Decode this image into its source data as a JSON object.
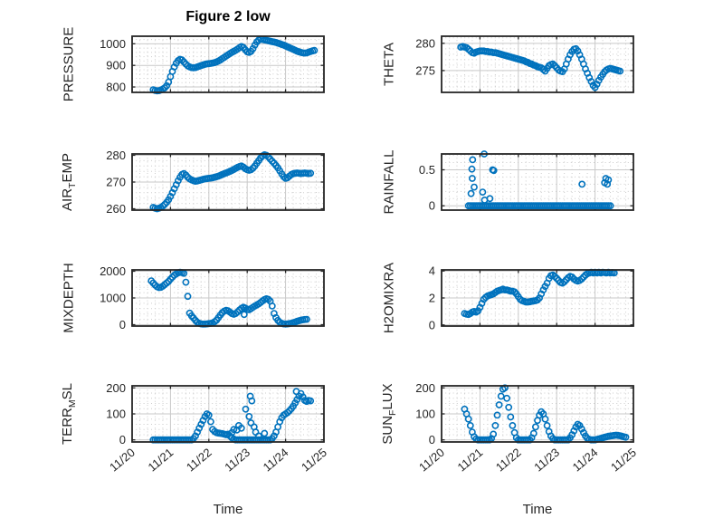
{
  "title": "Figure 2 low",
  "xlabel": "Time",
  "chart_data": {
    "type": "scatter",
    "layout": "4 rows x 2 columns of subplots, shared time axis",
    "x_unit": "days since 11/20",
    "xlim": [
      0,
      5
    ],
    "x_minor_step": 0.2,
    "xticks": {
      "values": [
        0,
        1,
        2,
        3,
        4,
        5
      ],
      "labels": [
        "11/20",
        "11/21",
        "11/22",
        "11/23",
        "11/24",
        "11/25"
      ]
    },
    "colors": {
      "marker": "#0072BD",
      "axes": "#262626",
      "grid": "#c9c9c9",
      "minor_grid": "#cdcdcd",
      "background": "#ffffff",
      "title": "#000000"
    },
    "marker": {
      "shape": "open-circle",
      "radius": 3.1,
      "stroke_width": 1.6
    },
    "subplots": [
      {
        "id": "pressure",
        "label": "PRESSURE",
        "ylabel_parts": [
          {
            "t": "PRESSURE",
            "sub": false
          }
        ],
        "yticks": {
          "values": [
            800,
            900,
            1000
          ],
          "labels": [
            "800",
            "900",
            "1000"
          ]
        },
        "ylim": [
          775,
          1035
        ],
        "y_minor_step": 20,
        "series": {
          "x_start": 0.55,
          "x_step": 0.05,
          "y": [
            787,
            784,
            782,
            783,
            786,
            790,
            796,
            806,
            823,
            848,
            872,
            893,
            910,
            922,
            928,
            925,
            916,
            906,
            898,
            893,
            890,
            889,
            890,
            893,
            896,
            899,
            902,
            905,
            907,
            908,
            909,
            911,
            913,
            916,
            920,
            925,
            931,
            937,
            943,
            949,
            955,
            960,
            965,
            970,
            976,
            982,
            987,
            983,
            972,
            963,
            960,
            965,
            978,
            994,
            1008,
            1017,
            1021,
            1020,
            1018,
            1016,
            1014,
            1012,
            1010,
            1008,
            1006,
            1003,
            1000,
            997,
            994,
            990,
            986,
            982,
            978,
            974,
            970,
            966,
            963,
            960,
            958,
            957,
            958,
            961,
            964,
            967,
            969
          ]
        },
        "points": []
      },
      {
        "id": "theta",
        "label": "THETA",
        "ylabel_parts": [
          {
            "t": "THETA",
            "sub": false
          }
        ],
        "yticks": {
          "values": [
            275,
            280
          ],
          "labels": [
            "275",
            "280"
          ]
        },
        "ylim": [
          271,
          281.3
        ],
        "y_minor_step": 1,
        "series": {
          "x_start": 0.5,
          "x_step": 0.05,
          "y": [
            279.3,
            279.4,
            279.3,
            279.2,
            278.9,
            278.6,
            278.3,
            278.2,
            278.4,
            278.5,
            278.6,
            278.6,
            278.6,
            278.5,
            278.5,
            278.4,
            278.4,
            278.3,
            278.3,
            278.2,
            278.1,
            278.0,
            277.9,
            277.8,
            277.7,
            277.6,
            277.5,
            277.4,
            277.3,
            277.2,
            277.1,
            277.0,
            276.9,
            276.8,
            276.6,
            276.5,
            276.3,
            276.2,
            276.0,
            275.9,
            275.7,
            275.6,
            275.5,
            275.2,
            274.9,
            275.4,
            275.9,
            276.1,
            276.2,
            275.9,
            275.5,
            275.1,
            274.9,
            274.8,
            275.3,
            276.2,
            277.1,
            277.9,
            278.5,
            278.9,
            279.0,
            278.6,
            277.9,
            277.1,
            276.2,
            275.3,
            274.5,
            273.7,
            273.0,
            272.3,
            271.9,
            272.5,
            273.2,
            273.8,
            274.3,
            274.8,
            275.1,
            275.3,
            275.4,
            275.3,
            275.2,
            275.1,
            275.0,
            274.9
          ]
        },
        "points": []
      },
      {
        "id": "air_temp",
        "label": "AIR_TEMP",
        "ylabel_parts": [
          {
            "t": "AIR",
            "sub": false
          },
          {
            "t": "T",
            "sub": true
          },
          {
            "t": "EMP",
            "sub": false
          }
        ],
        "yticks": {
          "values": [
            260,
            270,
            280
          ],
          "labels": [
            "260",
            "270",
            "280"
          ]
        },
        "ylim": [
          259.5,
          280.5
        ],
        "y_minor_step": 2,
        "series": {
          "x_start": 0.55,
          "x_step": 0.05,
          "y": [
            260.5,
            260.2,
            260.0,
            260.2,
            260.5,
            261.0,
            261.6,
            262.4,
            263.4,
            264.6,
            266.0,
            267.5,
            269.0,
            270.5,
            271.8,
            272.8,
            273.2,
            272.6,
            271.8,
            271.2,
            270.8,
            270.5,
            270.3,
            270.4,
            270.6,
            270.8,
            271.0,
            271.2,
            271.3,
            271.4,
            271.5,
            271.6,
            271.8,
            272.0,
            272.2,
            272.5,
            272.8,
            273.1,
            273.4,
            273.7,
            274.0,
            274.3,
            274.7,
            275.1,
            275.5,
            275.8,
            276.0,
            275.6,
            275.0,
            274.6,
            274.4,
            274.6,
            275.2,
            276.0,
            277.0,
            278.0,
            279.0,
            279.8,
            280.2,
            280.0,
            279.4,
            278.6,
            277.8,
            277.0,
            276.2,
            275.3,
            274.2,
            273.0,
            272.0,
            271.4,
            271.6,
            272.2,
            272.8,
            273.1,
            273.3,
            273.4,
            273.3,
            273.2,
            273.3,
            273.4,
            273.3,
            273.2,
            273.3
          ]
        },
        "points": []
      },
      {
        "id": "rainfall",
        "label": "RAINFALL",
        "ylabel_parts": [
          {
            "t": "RAINFALL",
            "sub": false
          }
        ],
        "yticks": {
          "values": [
            0,
            0.5
          ],
          "labels": [
            "0",
            "0.5"
          ]
        },
        "ylim": [
          -0.06,
          0.72
        ],
        "y_minor_step": 0.1,
        "series": {
          "x_start": 0.7,
          "x_step": 0.05,
          "y": [
            0,
            0,
            0,
            0,
            0,
            0,
            0,
            0,
            0,
            0,
            0,
            0,
            0,
            0,
            0,
            0,
            0,
            0,
            0,
            0,
            0,
            0,
            0,
            0,
            0,
            0,
            0,
            0,
            0,
            0,
            0,
            0,
            0,
            0,
            0,
            0,
            0,
            0,
            0,
            0,
            0,
            0,
            0,
            0,
            0,
            0,
            0,
            0,
            0,
            0,
            0,
            0,
            0,
            0,
            0,
            0,
            0,
            0,
            0,
            0,
            0,
            0,
            0,
            0,
            0,
            0,
            0,
            0,
            0,
            0,
            0,
            0,
            0,
            0,
            0
          ]
        },
        "points": [
          [
            0.77,
            0.17
          ],
          [
            0.79,
            0.51
          ],
          [
            0.8,
            0.38
          ],
          [
            0.81,
            0.64
          ],
          [
            0.85,
            0.26
          ],
          [
            1.07,
            0.19
          ],
          [
            1.11,
            0.72
          ],
          [
            1.12,
            0.08
          ],
          [
            1.26,
            0.1
          ],
          [
            1.33,
            0.5
          ],
          [
            1.36,
            0.49
          ],
          [
            3.66,
            0.3
          ],
          [
            4.25,
            0.32
          ],
          [
            4.28,
            0.38
          ],
          [
            4.32,
            0.3
          ],
          [
            4.35,
            0.36
          ]
        ]
      },
      {
        "id": "mixdepth",
        "label": "MIXDEPTH",
        "ylabel_parts": [
          {
            "t": "MIXDEPTH",
            "sub": false
          }
        ],
        "yticks": {
          "values": [
            0,
            1000,
            2000
          ],
          "labels": [
            "0",
            "1000",
            "2000"
          ]
        },
        "ylim": [
          -50,
          2050
        ],
        "y_minor_step": 200,
        "series": {
          "x_start": 0.5,
          "x_step": 0.05,
          "y": [
            1640,
            1560,
            1480,
            1420,
            1390,
            1400,
            1440,
            1500,
            1560,
            1620,
            1700,
            1780,
            1850,
            1900,
            1940,
            1960,
            1950,
            1920,
            1590,
            1060,
            430,
            330,
            250,
            160,
            90,
            50,
            30,
            20,
            25,
            30,
            40,
            50,
            70,
            110,
            170,
            260,
            360,
            450,
            510,
            540,
            520,
            470,
            420,
            390,
            420,
            480,
            550,
            610,
            650,
            620,
            580,
            560,
            600,
            650,
            700,
            740,
            780,
            830,
            890,
            940,
            970,
            950,
            880,
            700,
            420,
            260,
            160,
            90,
            50,
            30,
            25,
            30,
            40,
            55,
            75,
            100,
            125,
            150,
            170,
            185,
            195,
            200
          ]
        },
        "points": [
          [
            2.92,
            380
          ]
        ]
      },
      {
        "id": "h2omixra",
        "label": "H2OMIXRA",
        "ylabel_parts": [
          {
            "t": "H2OMIXRA",
            "sub": false
          }
        ],
        "yticks": {
          "values": [
            0,
            2,
            4
          ],
          "labels": [
            "0",
            "2",
            "4"
          ]
        },
        "ylim": [
          -0.08,
          4.08
        ],
        "y_minor_step": 0.4,
        "series": {
          "x_start": 0.6,
          "x_step": 0.05,
          "y": [
            0.85,
            0.8,
            0.78,
            0.85,
            0.95,
            1.0,
            0.95,
            1.05,
            1.3,
            1.6,
            1.9,
            2.05,
            2.15,
            2.2,
            2.25,
            2.3,
            2.4,
            2.5,
            2.55,
            2.6,
            2.65,
            2.6,
            2.6,
            2.55,
            2.5,
            2.5,
            2.45,
            2.3,
            2.1,
            1.9,
            1.8,
            1.75,
            1.7,
            1.7,
            1.72,
            1.75,
            1.78,
            1.8,
            1.85,
            2.0,
            2.3,
            2.6,
            2.85,
            3.1,
            3.45,
            3.65,
            3.7,
            3.6,
            3.45,
            3.3,
            3.15,
            3.1,
            3.2,
            3.35,
            3.5,
            3.6,
            3.55,
            3.4,
            3.3,
            3.25,
            3.3,
            3.4,
            3.55,
            3.7,
            3.8,
            3.85,
            3.9,
            3.85,
            3.9,
            3.85,
            3.9,
            3.85,
            3.9,
            3.88,
            3.85,
            3.9,
            3.85,
            3.88,
            3.85
          ]
        },
        "points": []
      },
      {
        "id": "terr_msl",
        "label": "TERR_MSL",
        "ylabel_parts": [
          {
            "t": "TERR",
            "sub": false
          },
          {
            "t": "M",
            "sub": true
          },
          {
            "t": "SL",
            "sub": false
          }
        ],
        "yticks": {
          "values": [
            0,
            100,
            200
          ],
          "labels": [
            "0",
            "100",
            "200"
          ]
        },
        "ylim": [
          -8,
          208
        ],
        "y_minor_step": 20,
        "series": {
          "x_start": 0.55,
          "x_step": 0.05,
          "y": [
            0,
            0,
            0,
            0,
            0,
            0,
            0,
            0,
            0,
            0,
            0,
            0,
            0,
            0,
            0,
            0,
            0,
            0,
            0,
            0,
            0,
            5,
            15,
            30,
            45,
            60,
            75,
            90,
            100,
            95,
            70,
            40,
            32,
            28,
            26,
            25,
            24,
            22,
            20,
            22,
            15,
            8,
            3,
            0,
            0,
            0,
            0,
            0,
            0,
            0,
            0,
            0,
            0,
            0,
            0,
            0,
            0,
            0,
            0,
            0,
            0,
            0,
            5,
            15,
            30,
            50,
            70,
            85,
            95,
            100,
            105,
            112,
            120,
            130,
            142,
            155,
            168,
            178,
            165,
            152,
            148,
            152,
            150
          ]
        },
        "points": [
          [
            2.6,
            28
          ],
          [
            2.65,
            40
          ],
          [
            2.73,
            38
          ],
          [
            2.78,
            55
          ],
          [
            2.85,
            45
          ],
          [
            2.96,
            118
          ],
          [
            3.05,
            90
          ],
          [
            3.08,
            168
          ],
          [
            3.1,
            65
          ],
          [
            3.12,
            150
          ],
          [
            3.18,
            50
          ],
          [
            3.22,
            30
          ],
          [
            3.3,
            15
          ],
          [
            3.45,
            25
          ],
          [
            4.28,
            186
          ]
        ]
      },
      {
        "id": "sun_flux",
        "label": "SUN_FLUX",
        "ylabel_parts": [
          {
            "t": "SUN",
            "sub": false
          },
          {
            "t": "F",
            "sub": true
          },
          {
            "t": "LUX",
            "sub": false
          }
        ],
        "yticks": {
          "values": [
            0,
            100,
            200
          ],
          "labels": [
            "0",
            "100",
            "200"
          ]
        },
        "ylim": [
          -8,
          208
        ],
        "y_minor_step": 20,
        "series": {
          "x_start": 0.6,
          "x_step": 0.05,
          "y": [
            118,
            100,
            80,
            55,
            30,
            12,
            3,
            0,
            0,
            0,
            0,
            0,
            0,
            0,
            5,
            22,
            55,
            95,
            135,
            168,
            195,
            200,
            160,
            125,
            88,
            55,
            28,
            8,
            0,
            0,
            0,
            0,
            0,
            0,
            0,
            8,
            25,
            50,
            75,
            95,
            108,
            100,
            80,
            55,
            32,
            15,
            5,
            0,
            0,
            0,
            0,
            0,
            0,
            0,
            0,
            8,
            20,
            35,
            50,
            60,
            55,
            42,
            28,
            15,
            6,
            2,
            0,
            0,
            0,
            2,
            4,
            6,
            8,
            10,
            12,
            14,
            15,
            16,
            17,
            18,
            17,
            16,
            14,
            12,
            10
          ]
        },
        "points": []
      }
    ]
  }
}
